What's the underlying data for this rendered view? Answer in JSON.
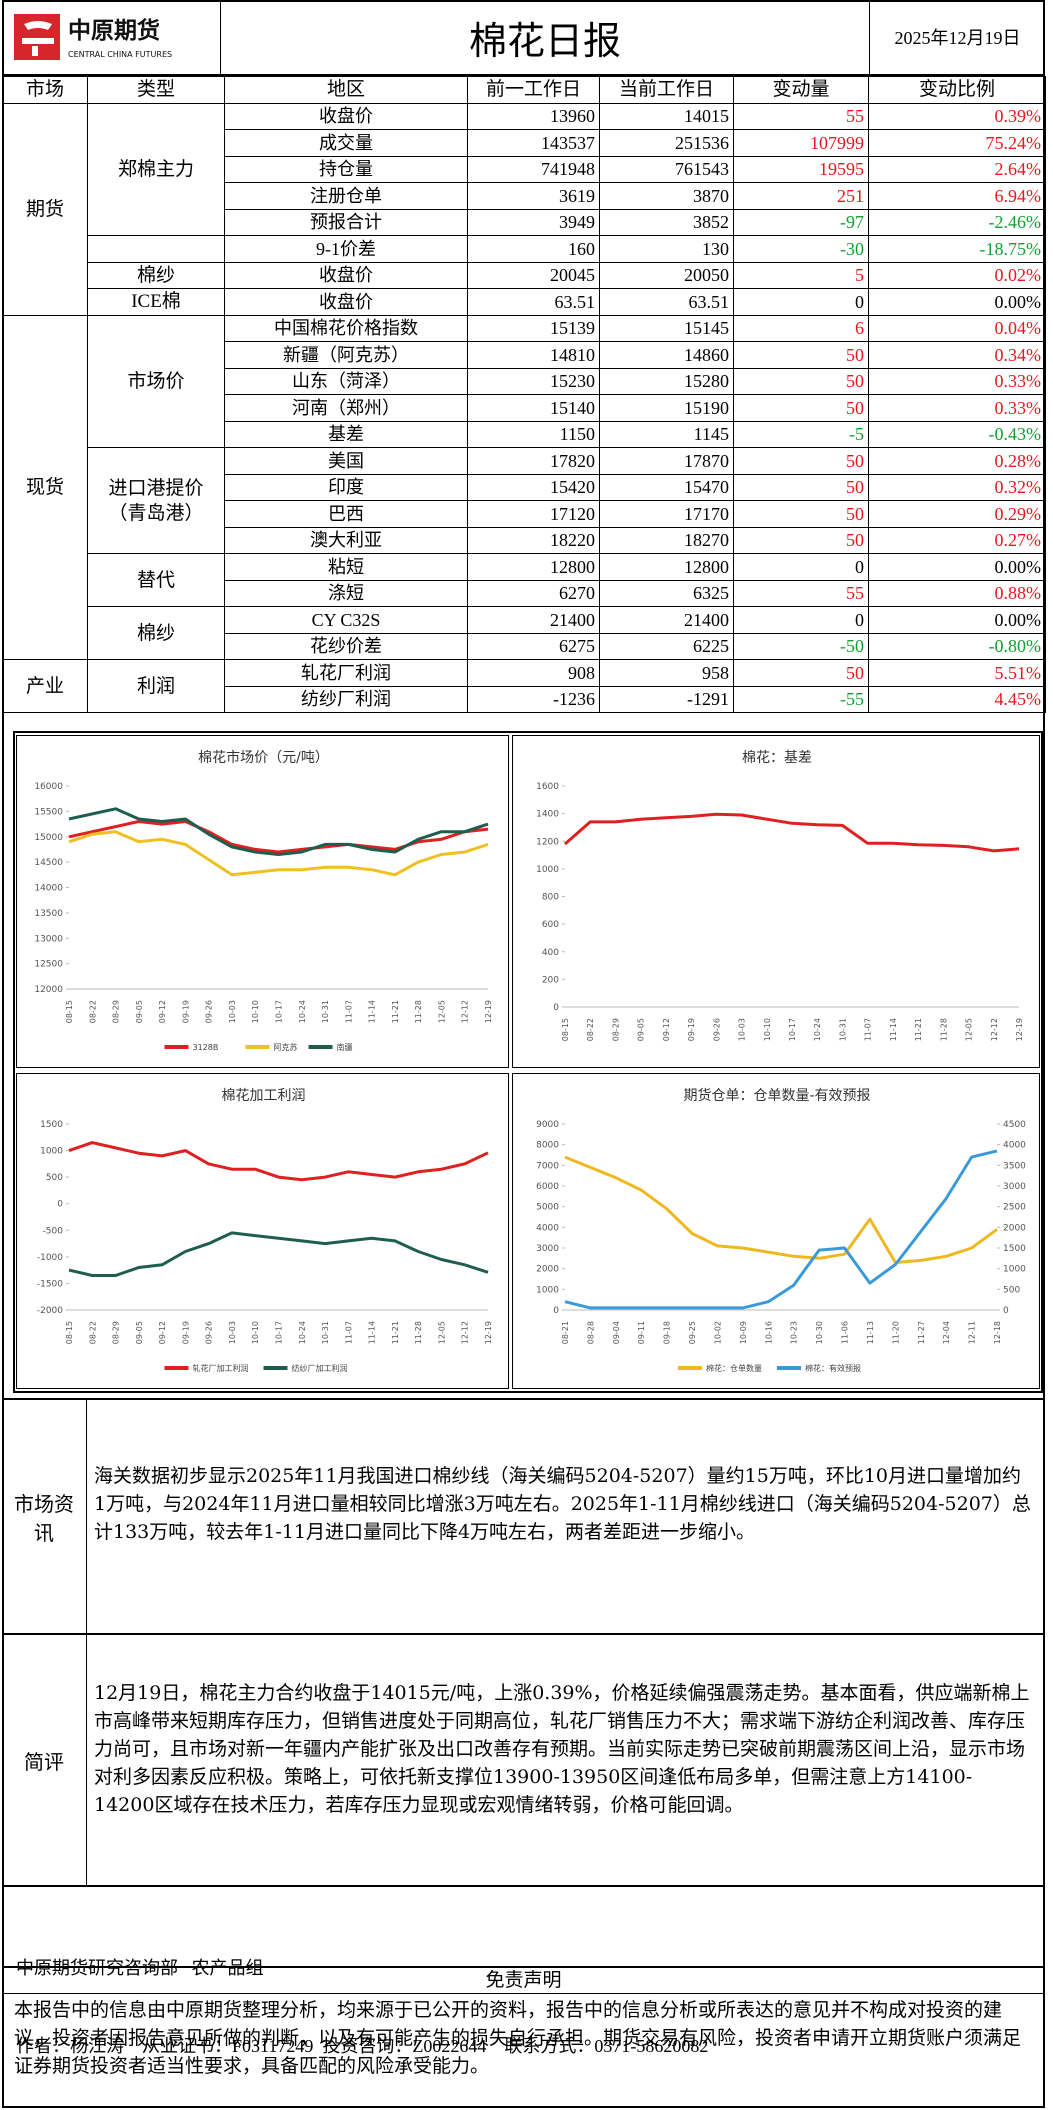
{
  "header": {
    "logo_cn": "中原期货",
    "logo_en": "CENTRAL CHINA FUTURES",
    "title": "棉花日报",
    "date": "2025年12月19日"
  },
  "table": {
    "header": [
      "市场",
      "类型",
      "地区",
      "前一工作日",
      "当前工作日",
      "变动量",
      "变动比例"
    ],
    "markets": [
      {
        "name": "期货",
        "types": [
          {
            "name": "郑棉主力",
            "rows": [
              [
                "收盘价",
                "13960",
                "14015",
                "55",
                "0.39%"
              ],
              [
                "成交量",
                "143537",
                "251536",
                "107999",
                "75.24%"
              ],
              [
                "持仓量",
                "741948",
                "761543",
                "19595",
                "2.64%"
              ],
              [
                "注册仓单",
                "3619",
                "3870",
                "251",
                "6.94%"
              ],
              [
                "预报合计",
                "3949",
                "3852",
                "-97",
                "-2.46%"
              ]
            ]
          },
          {
            "rows": [
              [
                "9-1价差",
                "160",
                "130",
                "-30",
                "-18.75%"
              ]
            ]
          },
          {
            "name": "棉纱",
            "rows": [
              [
                "收盘价",
                "20045",
                "20050",
                "5",
                "0.02%"
              ]
            ]
          },
          {
            "name": "ICE棉",
            "rows": [
              [
                "收盘价",
                "63.51",
                "63.51",
                "0",
                "0.00%"
              ]
            ]
          }
        ]
      },
      {
        "name": "现货",
        "types": [
          {
            "name": "市场价",
            "rows": [
              [
                "中国棉花价格指数",
                "15139",
                "15145",
                "6",
                "0.04%"
              ],
              [
                "新疆（阿克苏）",
                "14810",
                "14860",
                "50",
                "0.34%"
              ],
              [
                "山东（菏泽）",
                "15230",
                "15280",
                "50",
                "0.33%"
              ],
              [
                "河南（郑州）",
                "15140",
                "15190",
                "50",
                "0.33%"
              ],
              [
                "基差",
                "1150",
                "1145",
                "-5",
                "-0.43%"
              ]
            ]
          },
          {
            "name": "进口港提价（青岛港）",
            "rows": [
              [
                "美国",
                "17820",
                "17870",
                "50",
                "0.28%"
              ],
              [
                "印度",
                "15420",
                "15470",
                "50",
                "0.32%"
              ],
              [
                "巴西",
                "17120",
                "17170",
                "50",
                "0.29%"
              ],
              [
                "澳大利亚",
                "18220",
                "18270",
                "50",
                "0.27%"
              ]
            ]
          },
          {
            "name": "替代",
            "rows": [
              [
                "粘短",
                "12800",
                "12800",
                "0",
                "0.00%"
              ],
              [
                "涤短",
                "6270",
                "6325",
                "55",
                "0.88%"
              ]
            ]
          },
          {
            "name": "棉纱",
            "rows": [
              [
                "CY C32S",
                "21400",
                "21400",
                "0",
                "0.00%"
              ],
              [
                "花纱价差",
                "6275",
                "6225",
                "-50",
                "-0.80%"
              ]
            ]
          }
        ]
      },
      {
        "name": "产业",
        "types": [
          {
            "name": "利润",
            "rows": [
              [
                "轧花厂利润",
                "908",
                "958",
                "50",
                "5.51%"
              ],
              [
                "纺纱厂利润",
                "-1236",
                "-1291",
                "-55",
                "4.45%"
              ]
            ]
          }
        ]
      }
    ]
  },
  "chart_data": [
    {
      "type": "line",
      "title": "棉花市场价（元/吨）",
      "legend": "bottom",
      "categories": [
        "08-15",
        "08-22",
        "08-29",
        "09-05",
        "09-12",
        "09-19",
        "09-26",
        "10-03",
        "10-10",
        "10-17",
        "10-24",
        "10-31",
        "11-07",
        "11-14",
        "11-21",
        "11-28",
        "12-05",
        "12-12",
        "12-19"
      ],
      "ylim": [
        12000,
        16000
      ],
      "yticks": [
        12000,
        12500,
        13000,
        13500,
        14000,
        14500,
        15000,
        15500,
        16000
      ],
      "series": [
        {
          "name": "3128B",
          "color": "#e02020",
          "values": [
            15000,
            15100,
            15200,
            15300,
            15250,
            15300,
            15100,
            14850,
            14750,
            14700,
            14750,
            14800,
            14850,
            14800,
            14750,
            14900,
            14950,
            15100,
            15150
          ]
        },
        {
          "name": "阿克苏",
          "color": "#f0c020",
          "values": [
            14900,
            15050,
            15100,
            14900,
            14950,
            14850,
            14550,
            14250,
            14300,
            14350,
            14350,
            14400,
            14400,
            14350,
            14250,
            14500,
            14650,
            14700,
            14850
          ]
        },
        {
          "name": "南疆",
          "color": "#1f5e4f",
          "values": [
            15350,
            15450,
            15550,
            15350,
            15300,
            15350,
            15050,
            14800,
            14700,
            14650,
            14700,
            14850,
            14850,
            14750,
            14700,
            14950,
            15100,
            15100,
            15250
          ]
        }
      ]
    },
    {
      "type": "line",
      "title": "棉花：基差",
      "categories": [
        "08-15",
        "08-22",
        "08-29",
        "09-05",
        "09-12",
        "09-19",
        "09-26",
        "10-03",
        "10-10",
        "10-17",
        "10-24",
        "10-31",
        "11-07",
        "11-14",
        "11-21",
        "11-28",
        "12-05",
        "12-12",
        "12-19"
      ],
      "ylim": [
        0,
        1600
      ],
      "yticks": [
        0,
        200,
        400,
        600,
        800,
        1000,
        1200,
        1400,
        1600
      ],
      "color": "#e02020",
      "values": [
        1180,
        1340,
        1340,
        1360,
        1370,
        1380,
        1395,
        1390,
        1360,
        1330,
        1320,
        1315,
        1185,
        1185,
        1175,
        1170,
        1160,
        1130,
        1145
      ]
    },
    {
      "type": "line",
      "title": "棉花加工利润",
      "legend": "bottom",
      "categories": [
        "08-15",
        "08-22",
        "08-29",
        "09-05",
        "09-12",
        "09-19",
        "09-26",
        "10-03",
        "10-10",
        "10-17",
        "10-24",
        "10-31",
        "11-07",
        "11-14",
        "11-21",
        "11-28",
        "12-05",
        "12-12",
        "12-19"
      ],
      "ylim": [
        -2000,
        1500
      ],
      "yticks": [
        -2000,
        -1500,
        -1000,
        -500,
        0,
        500,
        1000,
        1500
      ],
      "series": [
        {
          "name": "轧花厂加工利润",
          "color": "#e02020",
          "values": [
            1000,
            1150,
            1050,
            950,
            900,
            1000,
            750,
            650,
            650,
            500,
            450,
            500,
            600,
            550,
            500,
            600,
            650,
            750,
            958
          ]
        },
        {
          "name": "纺纱厂加工利润",
          "color": "#1f5e4f",
          "values": [
            -1250,
            -1350,
            -1350,
            -1200,
            -1150,
            -900,
            -750,
            -550,
            -600,
            -650,
            -700,
            -750,
            -700,
            -650,
            -700,
            -900,
            -1050,
            -1150,
            -1291
          ]
        }
      ]
    },
    {
      "type": "line",
      "title": "期货仓单：仓单数量-有效预报",
      "legend": "bottom",
      "categories": [
        "08-21",
        "08-28",
        "09-04",
        "09-11",
        "09-18",
        "09-25",
        "10-02",
        "10-09",
        "10-16",
        "10-23",
        "10-30",
        "11-06",
        "11-13",
        "11-20",
        "11-27",
        "12-04",
        "12-11",
        "12-18"
      ],
      "ylim": [
        0,
        9000
      ],
      "yticks": [
        0,
        1000,
        2000,
        3000,
        4000,
        5000,
        6000,
        7000,
        8000,
        9000
      ],
      "y2lim": [
        0,
        4500
      ],
      "y2ticks": [
        0,
        500,
        1000,
        1500,
        2000,
        2500,
        3000,
        3500,
        4000,
        4500
      ],
      "series": [
        {
          "name": "棉花：仓单数量",
          "color": "#f0b820",
          "values": [
            7400,
            6900,
            6400,
            5800,
            4900,
            3700,
            3100,
            3000,
            2800,
            2600,
            2500,
            2700,
            4400,
            2300,
            2400,
            2600,
            3000,
            3900
          ]
        },
        {
          "name": "棉花：有效预报",
          "color": "#3a9ad9",
          "axis": "y2",
          "values": [
            200,
            50,
            50,
            50,
            50,
            50,
            50,
            50,
            200,
            600,
            1450,
            1500,
            650,
            1100,
            1900,
            2700,
            3700,
            3850
          ]
        }
      ]
    }
  ],
  "news": {
    "label": "市场资讯",
    "text": "海关数据初步显示2025年11月我国进口棉纱线（海关编码5204-5207）量约15万吨，环比10月进口量增加约1万吨，与2024年11月进口量相较同比增涨3万吨左右。2025年1-11月棉纱线进口（海关编码5204-5207）总计133万吨，较去年1-11月进口量同比下降4万吨左右，两者差距进一步缩小。"
  },
  "review": {
    "label": "简评",
    "text": "12月19日，棉花主力合约收盘于14015元/吨，上涨0.39%，价格延续偏强震荡走势。基本面看，供应端新棉上市高峰带来短期库存压力，但销售进度处于同期高位，轧花厂销售压力不大；需求端下游纺企利润改善、库存压力尚可，且市场对新一年疆内产能扩张及出口改善存有预期。当前实际走势已突破前期震荡区间上沿，显示市场对利多因素反应积极。策略上，可依托新支撑位13900-13950区间逢低布局多单，但需注意上方14100-14200区域存在技术压力，若库存压力显现或宏观情绪转弱，价格可能回调。"
  },
  "footer": {
    "line1": "中原期货研究咨询部   农产品组",
    "line2": "作者：杨江涛    从业证书：F03117249  投资咨询：Z0022644    联系方式：0371-58620082"
  },
  "disclaimer": {
    "title": "免责声明",
    "text": "本报告中的信息由中原期货整理分析，均来源于已公开的资料，报告中的信息分析或所表达的意见并不构成对投资的建议，投资者因报告意见所做的判断，以及有可能产生的损失自行承担。期货交易有风险，投资者申请开立期货账户须满足证券期货投资者适当性要求，具备匹配的风险承受能力。"
  }
}
